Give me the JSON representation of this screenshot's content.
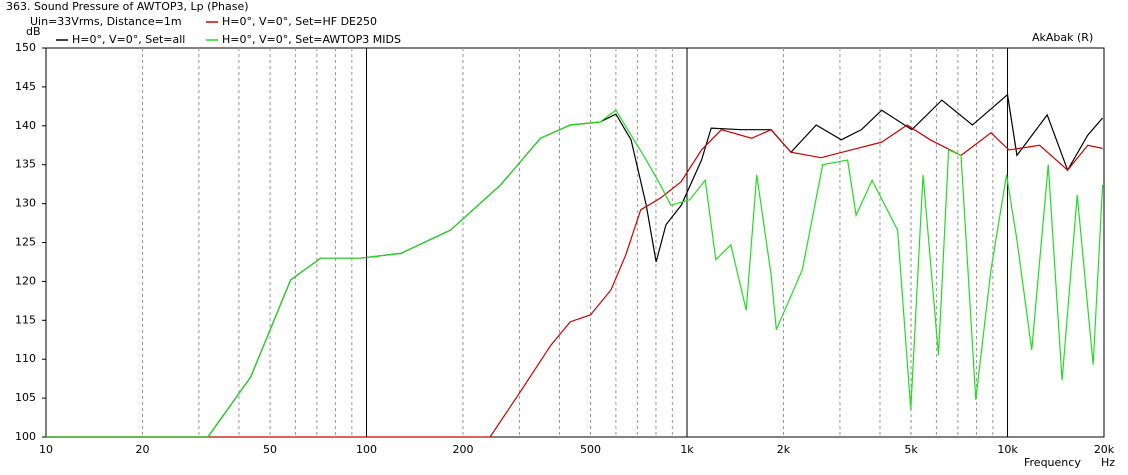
{
  "chart_data": {
    "type": "line",
    "title": "363. Sound Pressure of AWTOP3, Lp (Phase)",
    "subtitle": "Uin=33Vrms, Distance=1m",
    "annotation": "AkAbak (R)",
    "y_label": "dB",
    "x_label": "Frequency",
    "x_unit": "Hz",
    "log_x": true,
    "xlim": [
      10,
      20000
    ],
    "ylim": [
      100,
      150
    ],
    "xticks": [
      10,
      20,
      50,
      100,
      200,
      500,
      {
        "value": 1000,
        "label": "1k"
      },
      {
        "value": 2000,
        "label": "2k"
      },
      {
        "value": 5000,
        "label": "5k"
      },
      {
        "value": 10000,
        "label": "10k"
      },
      {
        "value": 20000,
        "label": "20k"
      }
    ],
    "yticks": [
      100,
      105,
      110,
      115,
      120,
      125,
      130,
      135,
      140,
      145,
      150
    ],
    "series": [
      {
        "name": "H=0°, V=0°, Set=all",
        "color": "#000000",
        "x": [
          10,
          32,
          43.5,
          58,
          72,
          96,
          128,
          183,
          262,
          349,
          432,
          536,
          600,
          669,
          746,
          801,
          860,
          960,
          1110,
          1190,
          1480,
          1830,
          2110,
          2530,
          3030,
          3500,
          4050,
          5030,
          6240,
          7770,
          10000,
          10700,
          13300,
          15400,
          17800,
          19800
        ],
        "values": [
          100,
          100,
          107.7,
          120.2,
          123,
          123,
          123.6,
          126.6,
          132.4,
          138.4,
          140.1,
          140.5,
          141.5,
          138.2,
          129.8,
          122.5,
          127.3,
          129.8,
          135.6,
          139.7,
          139.5,
          139.5,
          136.6,
          140.1,
          138.2,
          139.5,
          142,
          139.5,
          143.3,
          140.1,
          144,
          136.2,
          141.4,
          134.3,
          138.8,
          141
        ]
      },
      {
        "name": "H=0°, V=0°, Set=HF DE250",
        "color": "#cc0000",
        "x": [
          10,
          243,
          304,
          376,
          432,
          500,
          579,
          644,
          717,
          826,
          958,
          1110,
          1280,
          1590,
          1830,
          2110,
          2620,
          3250,
          4050,
          4860,
          5740,
          7160,
          8880,
          10100,
          12600,
          15400,
          17800,
          19800
        ],
        "values": [
          100,
          100,
          106,
          111.8,
          114.8,
          115.7,
          118.9,
          123.4,
          129.2,
          130.7,
          132.8,
          136.9,
          139.5,
          138.4,
          139.5,
          136.6,
          135.9,
          136.9,
          137.9,
          140.1,
          138.2,
          136.2,
          139.1,
          136.9,
          137.5,
          134.3,
          137.5,
          137.1
        ]
      },
      {
        "name": "H=0°, V=0°, Set=AWTOP3 MIDS",
        "color": "#22dd22",
        "x": [
          10,
          32,
          43.5,
          58,
          72,
          96,
          128,
          183,
          262,
          349,
          432,
          536,
          600,
          669,
          746,
          826,
          890,
          1020,
          1140,
          1230,
          1370,
          1530,
          1650,
          1830,
          1900,
          2290,
          2650,
          3170,
          3370,
          3780,
          4540,
          4990,
          5450,
          6090,
          6550,
          7160,
          7960,
          8880,
          9930,
          10700,
          11900,
          13400,
          14800,
          16500,
          18500,
          19800
        ],
        "values": [
          100,
          100,
          107.7,
          120.2,
          123,
          123,
          123.6,
          126.6,
          132.4,
          138.4,
          140.1,
          140.5,
          142,
          138.8,
          135.6,
          132.4,
          129.8,
          130.5,
          133,
          122.8,
          124.7,
          116.3,
          133.7,
          120.8,
          113.8,
          121.5,
          135,
          135.6,
          128.5,
          133,
          126.6,
          103.5,
          133.7,
          110.5,
          136.9,
          136.2,
          104.8,
          121.5,
          133.7,
          125.3,
          111.2,
          135,
          107.3,
          131.1,
          109.3,
          132.4
        ]
      }
    ]
  }
}
